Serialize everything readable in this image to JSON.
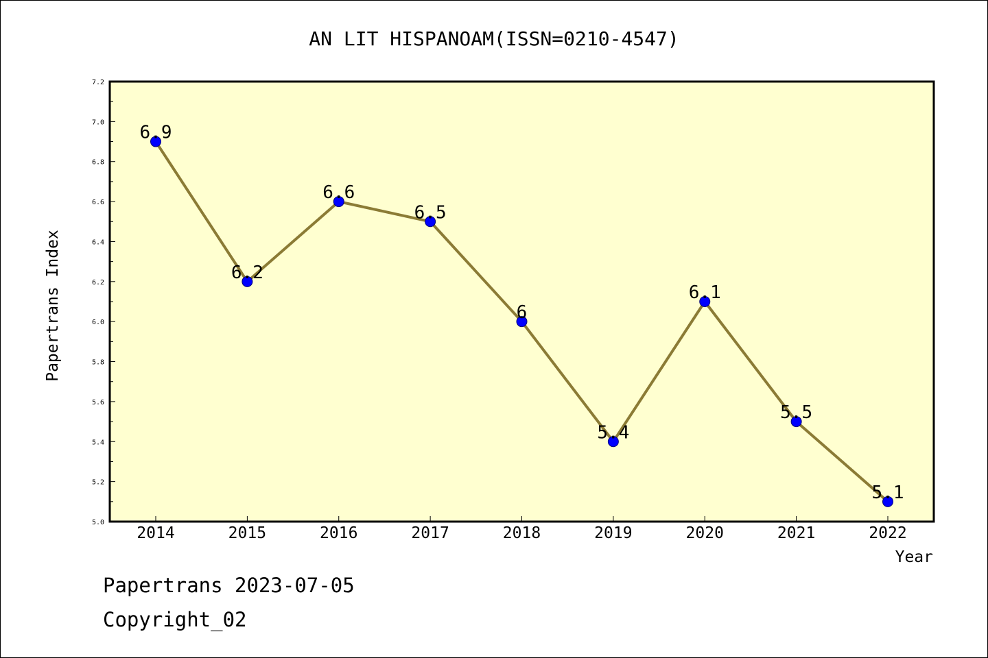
{
  "chart_data": {
    "type": "line",
    "title": "AN LIT HISPANOAM(ISSN=0210-4547)",
    "xlabel": "Year",
    "ylabel": "Papertrans Index",
    "x": [
      "2014",
      "2015",
      "2016",
      "2017",
      "2018",
      "2019",
      "2020",
      "2021",
      "2022"
    ],
    "values": [
      6.9,
      6.2,
      6.6,
      6.5,
      6.0,
      5.4,
      6.1,
      5.5,
      5.1
    ],
    "data_labels": [
      "6.9",
      "6.2",
      "6.6",
      "6.5",
      "6",
      "5.4",
      "6.1",
      "5.5",
      "5.1"
    ],
    "ylim": [
      5.0,
      7.2
    ],
    "yticks": [
      "5.0",
      "5.2",
      "5.4",
      "5.6",
      "5.8",
      "6.0",
      "6.2",
      "6.4",
      "6.6",
      "6.8",
      "7.0",
      "7.2"
    ],
    "grid": false,
    "colors": {
      "plot_background": "#ffffd0",
      "line": "#8b7b35",
      "marker": "#0000ff"
    }
  },
  "footer": {
    "line1": "Papertrans 2023-07-05",
    "line2": "Copyright_02"
  }
}
